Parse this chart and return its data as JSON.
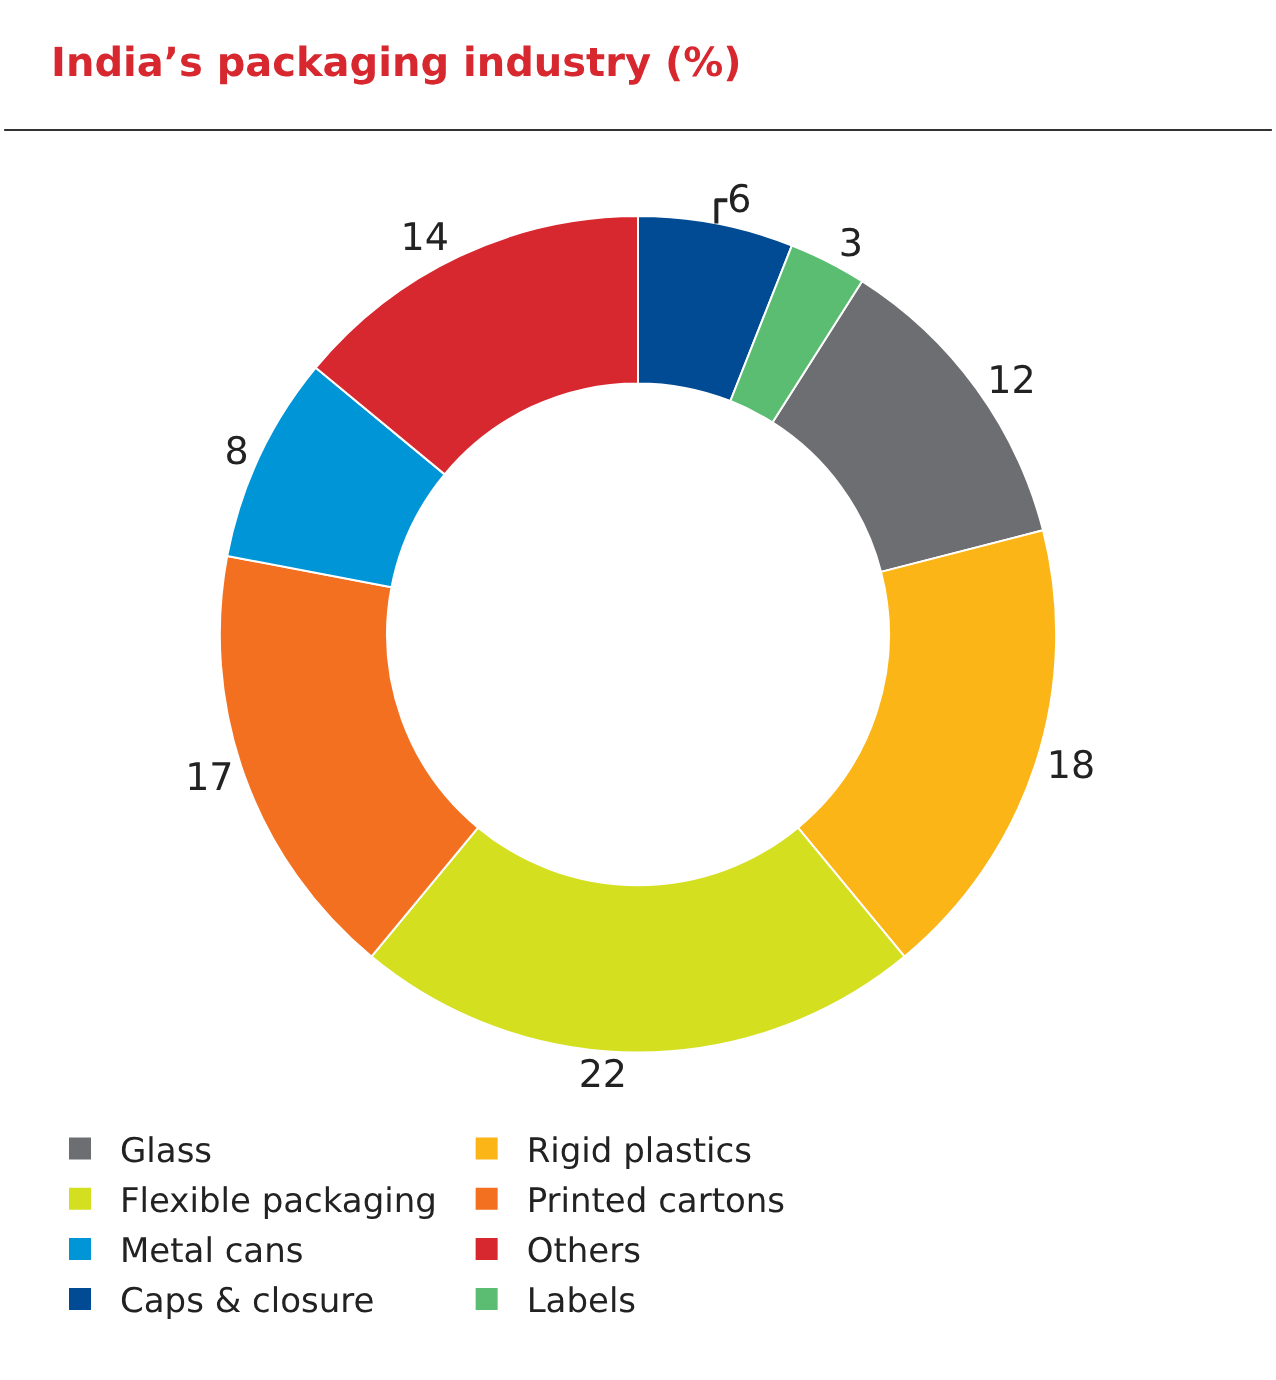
{
  "chart_data": {
    "type": "donut",
    "title": "India’s packaging industry (%)",
    "categories": [
      "Glass",
      "Rigid plastics",
      "Flexible packaging",
      "Printed cartons",
      "Metal cans",
      "Others",
      "Caps & closure",
      "Labels"
    ],
    "values": [
      12,
      18,
      22,
      17,
      8,
      14,
      6,
      3
    ],
    "colors": [
      "#6d6e71",
      "#fbb516",
      "#d4df20",
      "#f37021",
      "#0095d6",
      "#d7282f",
      "#004b93",
      "#5bbd72"
    ],
    "data_labels": true,
    "legend": "bottom"
  }
}
